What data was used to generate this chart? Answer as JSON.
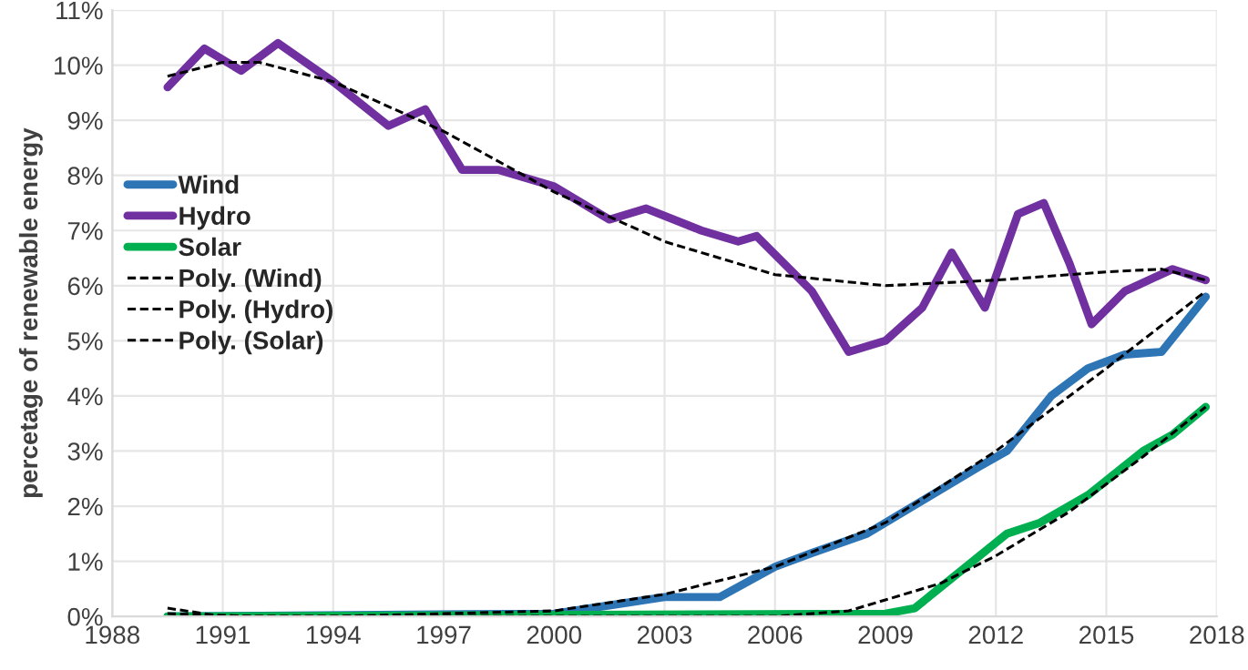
{
  "chart_data": {
    "type": "line",
    "ylabel": "percetage of renewable energy",
    "xlim": [
      1988,
      2018
    ],
    "xticks": [
      1988,
      1991,
      1994,
      1997,
      2000,
      2003,
      2006,
      2009,
      2012,
      2015,
      2018
    ],
    "ylim": [
      0,
      11
    ],
    "yticks": [
      {
        "value": 0,
        "label": "0%"
      },
      {
        "value": 1,
        "label": "1%"
      },
      {
        "value": 2,
        "label": "2%"
      },
      {
        "value": 3,
        "label": "3%"
      },
      {
        "value": 4,
        "label": "4%"
      },
      {
        "value": 5,
        "label": "5%"
      },
      {
        "value": 6,
        "label": "6%"
      },
      {
        "value": 7,
        "label": "7%"
      },
      {
        "value": 8,
        "label": "8%"
      },
      {
        "value": 9,
        "label": "9%"
      },
      {
        "value": 10,
        "label": "10%"
      },
      {
        "value": 11,
        "label": "11%"
      }
    ],
    "grid": true,
    "legend": "left",
    "marker": "none",
    "series": [
      {
        "name": "Wind",
        "color": "#2e75b6",
        "line_style": "solid",
        "x": [
          1989.5,
          2000,
          2001.5,
          2003,
          2004.5,
          2006,
          2007,
          2008.5,
          2010,
          2011.5,
          2012.3,
          2013.5,
          2014.5,
          2015.5,
          2016.5,
          2017.7
        ],
        "values": [
          0,
          0.05,
          0.2,
          0.35,
          0.35,
          0.9,
          1.15,
          1.5,
          2.1,
          2.7,
          3.0,
          4.0,
          4.5,
          4.75,
          4.8,
          5.8
        ]
      },
      {
        "name": "Hydro",
        "color": "#7030a0",
        "line_style": "solid",
        "x": [
          1989.5,
          1990.5,
          1991.5,
          1992.5,
          1994,
          1995.5,
          1996.5,
          1997.5,
          1998.5,
          2000,
          2001.5,
          2002.5,
          2004,
          2005,
          2005.5,
          2007,
          2008,
          2009,
          2010,
          2010.8,
          2011.7,
          2012.6,
          2013.3,
          2014,
          2014.6,
          2015.5,
          2016.8,
          2017.7
        ],
        "values": [
          9.6,
          10.3,
          9.9,
          10.4,
          9.7,
          8.9,
          9.2,
          8.1,
          8.1,
          7.8,
          7.2,
          7.4,
          7.0,
          6.8,
          6.9,
          5.9,
          4.8,
          5.0,
          5.6,
          6.6,
          5.6,
          7.3,
          7.5,
          6.4,
          5.3,
          5.9,
          6.3,
          6.1
        ]
      },
      {
        "name": "Solar",
        "color": "#00b050",
        "line_style": "solid",
        "x": [
          1989.5,
          2009,
          2009.8,
          2011,
          2012.3,
          2013.2,
          2014.5,
          2016,
          2016.8,
          2017.7
        ],
        "values": [
          0,
          0.05,
          0.15,
          0.8,
          1.5,
          1.7,
          2.2,
          3.0,
          3.3,
          3.8
        ]
      },
      {
        "name": "Poly. (Wind)",
        "color": "#000000",
        "line_style": "dashed",
        "x": [
          1989.5,
          1991,
          1994,
          1997,
          2000,
          2003,
          2006,
          2009,
          2012,
          2015,
          2017.7
        ],
        "values": [
          0.15,
          0.0,
          0.0,
          0.05,
          0.1,
          0.4,
          0.9,
          1.7,
          3.0,
          4.5,
          5.9
        ]
      },
      {
        "name": "Poly. (Hydro)",
        "color": "#000000",
        "line_style": "dashed",
        "x": [
          1989.5,
          1991,
          1992,
          1994,
          1997,
          2000,
          2003,
          2006,
          2009,
          2012,
          2015,
          2016.5,
          2017.7
        ],
        "values": [
          9.8,
          10.05,
          10.05,
          9.7,
          8.8,
          7.7,
          6.8,
          6.2,
          6.0,
          6.1,
          6.25,
          6.3,
          6.1
        ]
      },
      {
        "name": "Poly. (Solar)",
        "color": "#000000",
        "line_style": "dashed",
        "x": [
          1989.5,
          1992,
          2006,
          2008,
          2009,
          2010.5,
          2012,
          2014,
          2016,
          2017.7
        ],
        "values": [
          0.05,
          0,
          0,
          0.1,
          0.3,
          0.6,
          1.1,
          1.9,
          2.9,
          3.8
        ]
      }
    ]
  }
}
